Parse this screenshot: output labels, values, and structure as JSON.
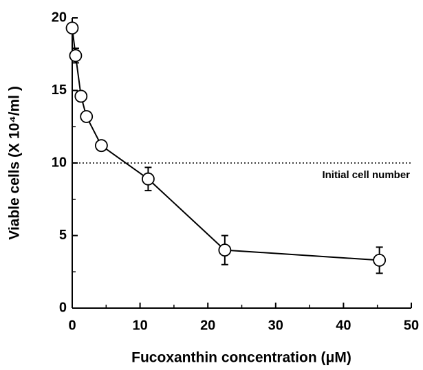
{
  "chart_data": {
    "type": "line",
    "x_label": "Fucoxanthin concentration (μM)",
    "y_label": "Viable cells (X 10⁴/ml )",
    "x": [
      0,
      0.5,
      1.3,
      2.1,
      4.3,
      11.2,
      22.5,
      45.3
    ],
    "values": [
      19.3,
      17.4,
      14.6,
      13.2,
      11.2,
      8.9,
      4.0,
      3.3
    ],
    "errors": [
      null,
      0.5,
      null,
      null,
      null,
      0.8,
      1.0,
      0.9
    ],
    "color": "#000000",
    "xlim": [
      0,
      50
    ],
    "xticks": [
      0,
      10,
      20,
      30,
      40,
      50
    ],
    "xminorticks": [
      5,
      15,
      25,
      35,
      45
    ],
    "ylim": [
      0,
      20
    ],
    "yticks": [
      0,
      5,
      10,
      15,
      20
    ],
    "yminorticks": [
      2.5,
      7.5,
      12.5,
      17.5
    ],
    "reference_line": {
      "value": 10,
      "label": "Initial cell number"
    }
  }
}
